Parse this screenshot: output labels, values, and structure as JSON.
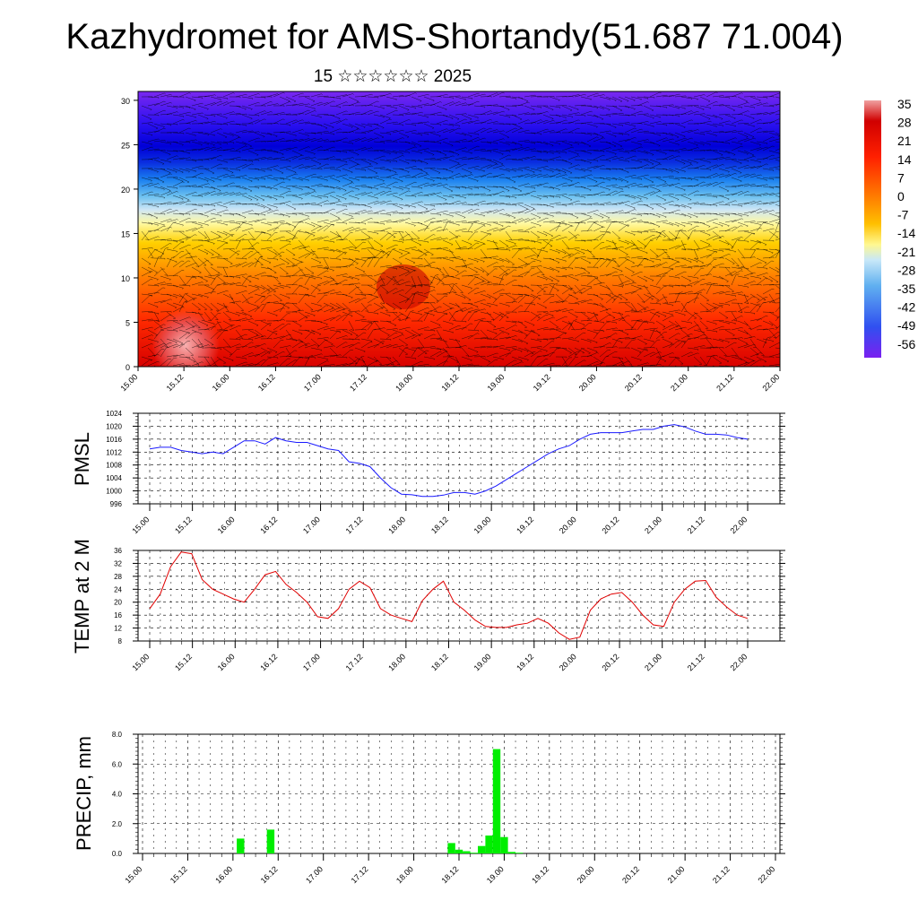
{
  "header": {
    "title": "Kazhydromet for AMS-Shortandy(51.687 71.004)",
    "subtitle": "15 ☆☆☆☆☆☆ 2025"
  },
  "colors": {
    "pmsl_line": "#1a1aff",
    "temp_line": "#e00000",
    "precip_bar": "#00ee00"
  },
  "chart_data": [
    {
      "type": "heatmap",
      "name": "cross-section",
      "x_ticks": [
        "15.00",
        "15.12",
        "16.00",
        "16.12",
        "17.00",
        "17.12",
        "18.00",
        "18.12",
        "19.00",
        "19.12",
        "20.00",
        "20.12",
        "21.00",
        "21.12",
        "22.00"
      ],
      "y_ticks": [
        "0",
        "5",
        "10",
        "15",
        "20",
        "25",
        "30"
      ],
      "ylim": [
        0,
        31
      ],
      "colorbar_labels": [
        "35",
        "28",
        "21",
        "14",
        "7",
        "0",
        "-7",
        "-14",
        "-21",
        "-28",
        "-35",
        "-42",
        "-49",
        "-56"
      ],
      "overlay": "wind barbs"
    },
    {
      "type": "line",
      "ylabel": "PMSL",
      "x_ticks": [
        "15.00",
        "15.12",
        "16.00",
        "16.12",
        "17.00",
        "17.12",
        "18.00",
        "18.12",
        "19.00",
        "19.12",
        "20.00",
        "20.12",
        "21.00",
        "21.12",
        "22.00"
      ],
      "y_ticks": [
        "996",
        "1000",
        "1004",
        "1008",
        "1012",
        "1016",
        "1020",
        "1024"
      ],
      "ylim": [
        996,
        1024
      ],
      "values": [
        1013,
        1013.5,
        1013.5,
        1012.5,
        1012,
        1011.5,
        1012,
        1011.5,
        1013.5,
        1015.5,
        1015.5,
        1014.5,
        1016.5,
        1015.5,
        1015,
        1015,
        1014,
        1013,
        1012.5,
        1009,
        1008.5,
        1007.5,
        1004,
        1001,
        999,
        998.8,
        998.3,
        998.3,
        998.7,
        999.5,
        999.5,
        999,
        1000,
        1001.5,
        1003.5,
        1005.5,
        1007.5,
        1009.5,
        1011.5,
        1013,
        1014,
        1016,
        1017.5,
        1018,
        1018,
        1018,
        1018.5,
        1019,
        1019,
        1020,
        1020.5,
        1019.8,
        1018.5,
        1017.5,
        1017.5,
        1017.3,
        1016.5,
        1016
      ]
    },
    {
      "type": "line",
      "ylabel": "TEMP at 2 M",
      "x_ticks": [
        "15.00",
        "15.12",
        "16.00",
        "16.12",
        "17.00",
        "17.12",
        "18.00",
        "18.12",
        "19.00",
        "19.12",
        "20.00",
        "20.12",
        "21.00",
        "21.12",
        "22.00"
      ],
      "y_ticks": [
        "8",
        "12",
        "16",
        "20",
        "24",
        "28",
        "32",
        "36"
      ],
      "ylim": [
        8,
        36
      ],
      "values": [
        18,
        22.5,
        31,
        35.5,
        35,
        27,
        24,
        22.5,
        21,
        20,
        24,
        28.5,
        29.5,
        25.5,
        23,
        20,
        15.5,
        15,
        18,
        24,
        26.5,
        24.5,
        18,
        16,
        15,
        14,
        20.5,
        24,
        26.5,
        20,
        17.5,
        14.5,
        12.5,
        12.2,
        12.2,
        13,
        13.5,
        15,
        13.5,
        10.5,
        8.5,
        9.2,
        17.5,
        21,
        22.5,
        23,
        20,
        16,
        13,
        12.5,
        20,
        24,
        26.5,
        26.7,
        21.5,
        18.5,
        16,
        15
      ]
    },
    {
      "type": "bar",
      "ylabel": "PRECIP, mm",
      "x_ticks": [
        "15.00",
        "15.12",
        "16.00",
        "16.12",
        "17.00",
        "17.12",
        "18.00",
        "18.12",
        "19.00",
        "19.12",
        "20.00",
        "20.12",
        "21.00",
        "21.12",
        "22.00"
      ],
      "y_ticks": [
        "0.0",
        "2.0",
        "4.0",
        "6.0",
        "8.0"
      ],
      "ylim": [
        0,
        8
      ],
      "values": [
        0,
        0,
        0,
        0,
        0,
        0,
        0,
        0,
        0,
        0,
        0,
        0,
        0,
        1.0,
        0,
        0,
        0,
        1.6,
        0,
        0,
        0,
        0,
        0,
        0,
        0,
        0,
        0,
        0,
        0,
        0,
        0,
        0,
        0,
        0,
        0,
        0,
        0,
        0,
        0,
        0,
        0,
        0.7,
        0.25,
        0.15,
        0.05,
        0.5,
        1.2,
        7.0,
        1.1,
        0.1,
        0.05,
        0,
        0,
        0,
        0,
        0,
        0,
        0,
        0,
        0,
        0,
        0,
        0,
        0,
        0,
        0,
        0,
        0,
        0,
        0,
        0,
        0,
        0,
        0,
        0,
        0,
        0,
        0,
        0,
        0,
        0,
        0,
        0,
        0,
        0
      ]
    }
  ]
}
